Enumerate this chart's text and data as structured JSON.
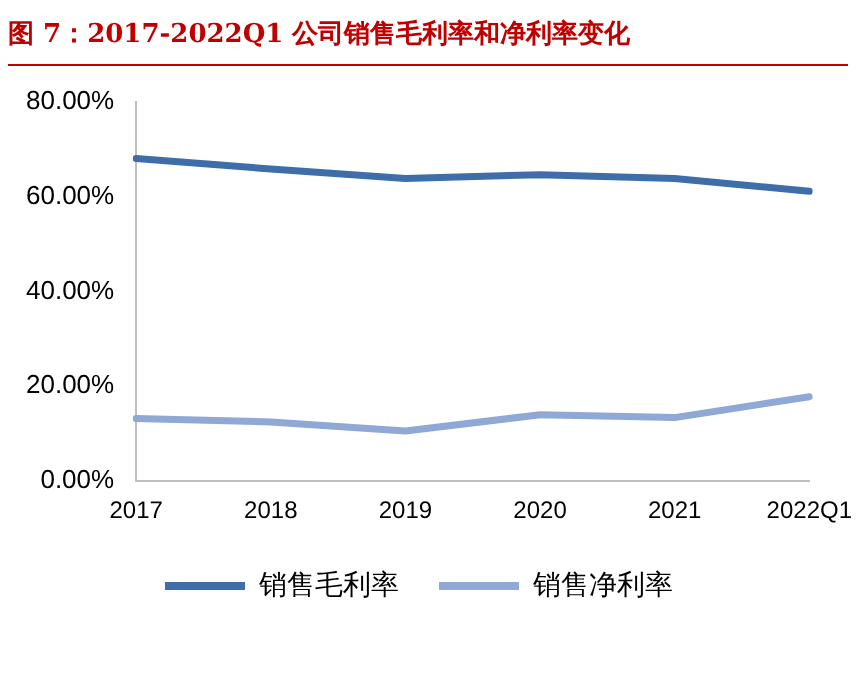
{
  "chart_data": {
    "type": "line",
    "title": "图 7：2017-2022Q1 公司销售毛利率和净利率变化",
    "categories": [
      "2017",
      "2018",
      "2019",
      "2020",
      "2021",
      "2022Q1"
    ],
    "series": [
      {
        "name": "销售毛利率",
        "color": "#3e6ea9",
        "values": [
          68.0,
          65.8,
          63.8,
          64.6,
          63.8,
          61.1
        ]
      },
      {
        "name": "销售净利率",
        "color": "#8fa8d6",
        "values": [
          13.2,
          12.5,
          10.6,
          14.0,
          13.4,
          17.8
        ]
      }
    ],
    "ylim": [
      0,
      80
    ],
    "yticks": [
      {
        "value": 0,
        "label": "0.00%"
      },
      {
        "value": 20,
        "label": "20.00%"
      },
      {
        "value": 40,
        "label": "40.00%"
      },
      {
        "value": 60,
        "label": "60.00%"
      },
      {
        "value": 80,
        "label": "80.00%"
      }
    ],
    "grid": false,
    "legend": "bottom",
    "marker": "none",
    "line_style": "solid"
  }
}
